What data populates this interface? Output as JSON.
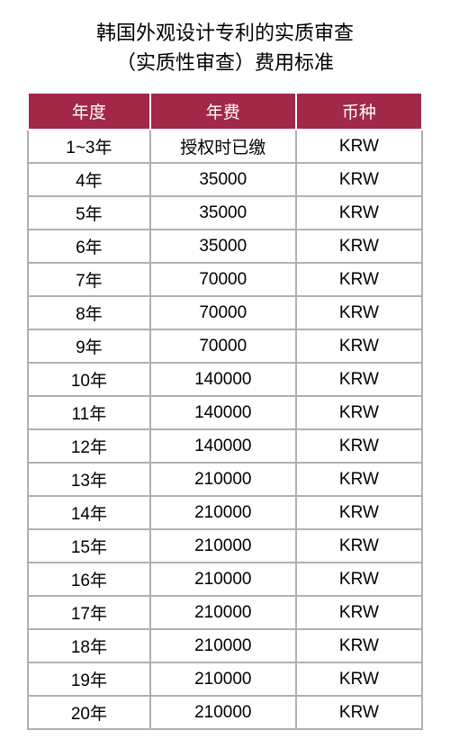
{
  "title_line1": "韩国外观设计专利的实质审查",
  "title_line2": "（实质性审查）费用标准",
  "header_bg": "#a12846",
  "columns": [
    "年度",
    "年费",
    "币种"
  ],
  "rows": [
    [
      "1~3年",
      "授权时已缴",
      "KRW"
    ],
    [
      "4年",
      "35000",
      "KRW"
    ],
    [
      "5年",
      "35000",
      "KRW"
    ],
    [
      "6年",
      "35000",
      "KRW"
    ],
    [
      "7年",
      "70000",
      "KRW"
    ],
    [
      "8年",
      "70000",
      "KRW"
    ],
    [
      "9年",
      "70000",
      "KRW"
    ],
    [
      "10年",
      "140000",
      "KRW"
    ],
    [
      "11年",
      "140000",
      "KRW"
    ],
    [
      "12年",
      "140000",
      "KRW"
    ],
    [
      "13年",
      "210000",
      "KRW"
    ],
    [
      "14年",
      "210000",
      "KRW"
    ],
    [
      "15年",
      "210000",
      "KRW"
    ],
    [
      "16年",
      "210000",
      "KRW"
    ],
    [
      "17年",
      "210000",
      "KRW"
    ],
    [
      "18年",
      "210000",
      "KRW"
    ],
    [
      "19年",
      "210000",
      "KRW"
    ],
    [
      "20年",
      "210000",
      "KRW"
    ]
  ]
}
